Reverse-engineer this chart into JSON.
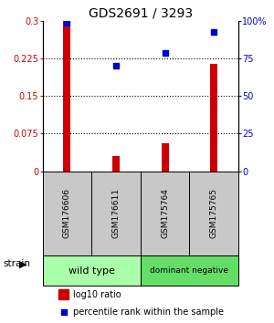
{
  "title": "GDS2691 / 3293",
  "samples": [
    "GSM176606",
    "GSM176611",
    "GSM175764",
    "GSM175765"
  ],
  "log10_ratio": [
    0.3,
    0.03,
    0.055,
    0.215
  ],
  "percentile_rank": [
    98.5,
    70.0,
    78.5,
    93.0
  ],
  "ylim_left": [
    0,
    0.3
  ],
  "ylim_right": [
    0,
    100
  ],
  "yticks_left": [
    0,
    0.075,
    0.15,
    0.225,
    0.3
  ],
  "ytick_labels_left": [
    "0",
    "0.075",
    "0.15",
    "0.225",
    "0.3"
  ],
  "yticks_right": [
    0,
    25,
    50,
    75,
    100
  ],
  "ytick_labels_right": [
    "0",
    "25",
    "50",
    "75",
    "100%"
  ],
  "hlines": [
    0.075,
    0.15,
    0.225
  ],
  "bar_color": "#cc0000",
  "scatter_color": "#0000cc",
  "group_labels": [
    "wild type",
    "dominant negative"
  ],
  "group_ranges": [
    [
      0,
      2
    ],
    [
      2,
      4
    ]
  ],
  "group_colors": [
    "#aaffaa",
    "#66dd66"
  ],
  "label_area_color": "#c8c8c8",
  "title_fontsize": 10,
  "bar_width": 0.15
}
